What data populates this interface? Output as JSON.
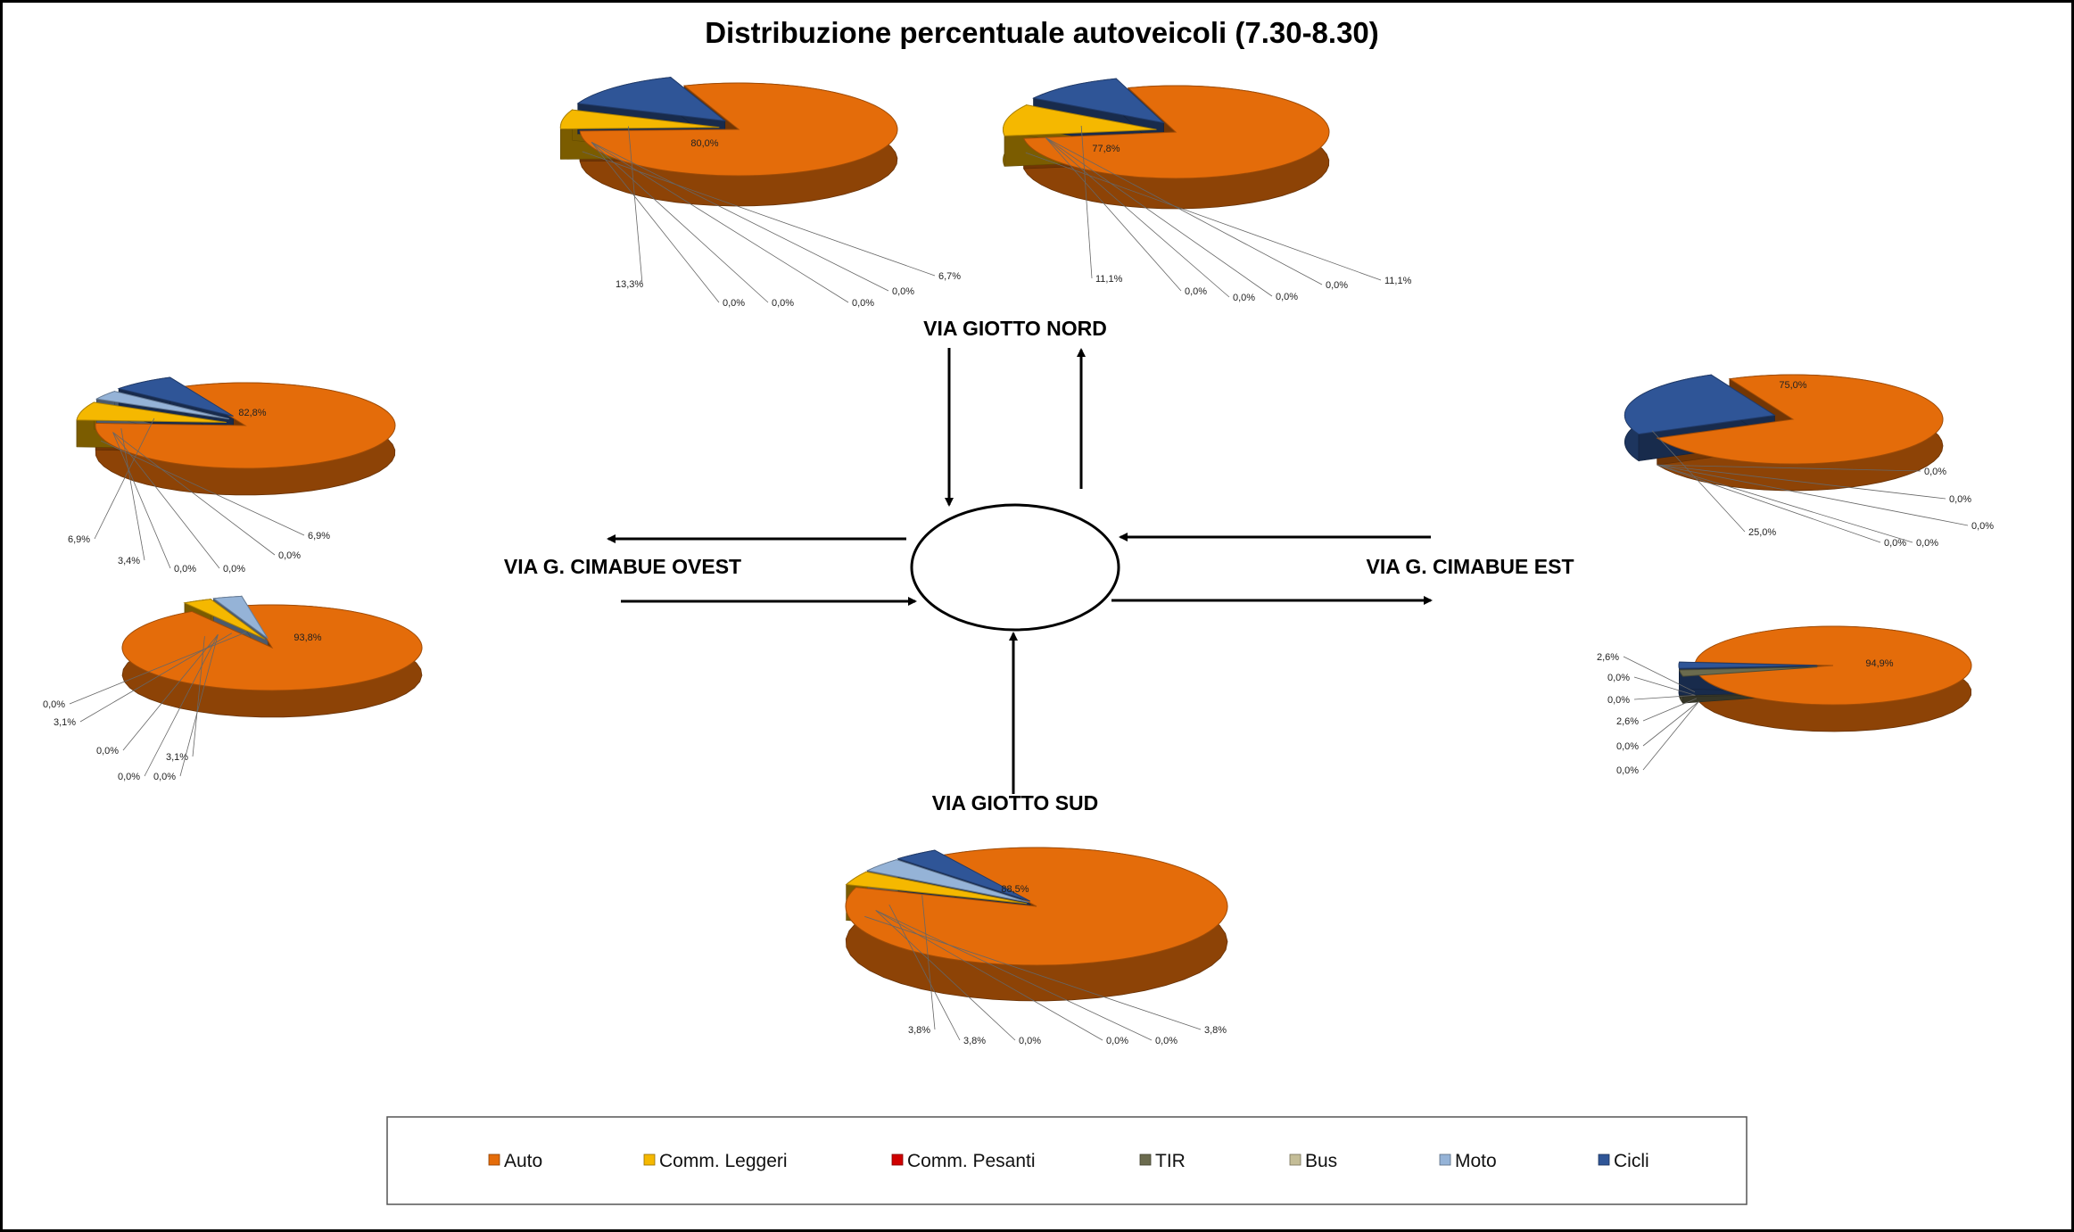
{
  "title": "Distribuzione percentuale autoveicoli (7.30-8.30)",
  "roads": {
    "nord": "VIA GIOTTO NORD",
    "sud": "VIA GIOTTO SUD",
    "ovest": "VIA G. CIMABUE OVEST",
    "est": "VIA G. CIMABUE EST"
  },
  "legend": [
    {
      "name": "Auto",
      "color": "#E46C0A"
    },
    {
      "name": "Comm. Leggeri",
      "color": "#F5B800"
    },
    {
      "name": "Comm. Pesanti",
      "color": "#D00000"
    },
    {
      "name": "TIR",
      "color": "#6B6B4E"
    },
    {
      "name": "Bus",
      "color": "#C4BD97"
    },
    {
      "name": "Moto",
      "color": "#95B3D7"
    },
    {
      "name": "Cicli",
      "color": "#2F5597"
    }
  ],
  "chart_data": [
    {
      "type": "pie",
      "id": "nord-in",
      "categories": [
        "Auto",
        "Comm. Leggeri",
        "Comm. Pesanti",
        "TIR",
        "Bus",
        "Moto",
        "Cicli"
      ],
      "values": [
        80.0,
        6.7,
        0.0,
        0.0,
        0.0,
        0.0,
        13.3
      ],
      "labels": [
        "80,0%",
        "6,7%",
        "0,0%",
        "0,0%",
        "0,0%",
        "0,0%",
        "13,3%"
      ]
    },
    {
      "type": "pie",
      "id": "nord-out",
      "categories": [
        "Auto",
        "Comm. Leggeri",
        "Comm. Pesanti",
        "TIR",
        "Bus",
        "Moto",
        "Cicli"
      ],
      "values": [
        77.8,
        11.1,
        0.0,
        0.0,
        0.0,
        0.0,
        11.1
      ],
      "labels": [
        "77,8%",
        "11,1%",
        "0,0%",
        "0,0%",
        "0,0%",
        "0,0%",
        "11,1%"
      ]
    },
    {
      "type": "pie",
      "id": "ovest-out",
      "categories": [
        "Auto",
        "Comm. Leggeri",
        "Comm. Pesanti",
        "TIR",
        "Bus",
        "Moto",
        "Cicli"
      ],
      "values": [
        82.8,
        6.9,
        0.0,
        0.0,
        0.0,
        3.4,
        6.9
      ],
      "labels": [
        "82,8%",
        "6,9%",
        "0,0%",
        "0,0%",
        "0,0%",
        "3,4%",
        "6,9%"
      ]
    },
    {
      "type": "pie",
      "id": "ovest-in",
      "categories": [
        "Auto",
        "Comm. Leggeri",
        "Comm. Pesanti",
        "TIR",
        "Bus",
        "Moto",
        "Cicli"
      ],
      "values": [
        93.8,
        3.1,
        0.0,
        0.0,
        0.0,
        3.1,
        0.0
      ],
      "labels": [
        "93,8%",
        "3,1%",
        "0,0%",
        "0,0%",
        "0,0%",
        "3,1%",
        "0,0%"
      ]
    },
    {
      "type": "pie",
      "id": "est-in",
      "categories": [
        "Auto",
        "Comm. Leggeri",
        "Comm. Pesanti",
        "TIR",
        "Bus",
        "Moto",
        "Cicli"
      ],
      "values": [
        75.0,
        0.0,
        0.0,
        0.0,
        0.0,
        0.0,
        25.0
      ],
      "labels": [
        "75,0%",
        "0,0%",
        "0,0%",
        "0,0%",
        "0,0%",
        "0,0%",
        "25,0%"
      ]
    },
    {
      "type": "pie",
      "id": "est-out",
      "categories": [
        "Auto",
        "Comm. Leggeri",
        "Comm. Pesanti",
        "TIR",
        "Bus",
        "Moto",
        "Cicli"
      ],
      "values": [
        94.9,
        0.0,
        0.0,
        2.6,
        0.0,
        0.0,
        2.6
      ],
      "labels": [
        "94,9%",
        "0,0%",
        "0,0%",
        "2,6%",
        "0,0%",
        "0,0%",
        "2,6%"
      ]
    },
    {
      "type": "pie",
      "id": "sud-in",
      "categories": [
        "Auto",
        "Comm. Leggeri",
        "Comm. Pesanti",
        "TIR",
        "Bus",
        "Moto",
        "Cicli"
      ],
      "values": [
        88.5,
        3.8,
        0.0,
        0.0,
        0.0,
        3.8,
        3.8
      ],
      "labels": [
        "88,5%",
        "3,8%",
        "0,0%",
        "0,0%",
        "0,0%",
        "3,8%",
        "3,8%"
      ]
    }
  ]
}
